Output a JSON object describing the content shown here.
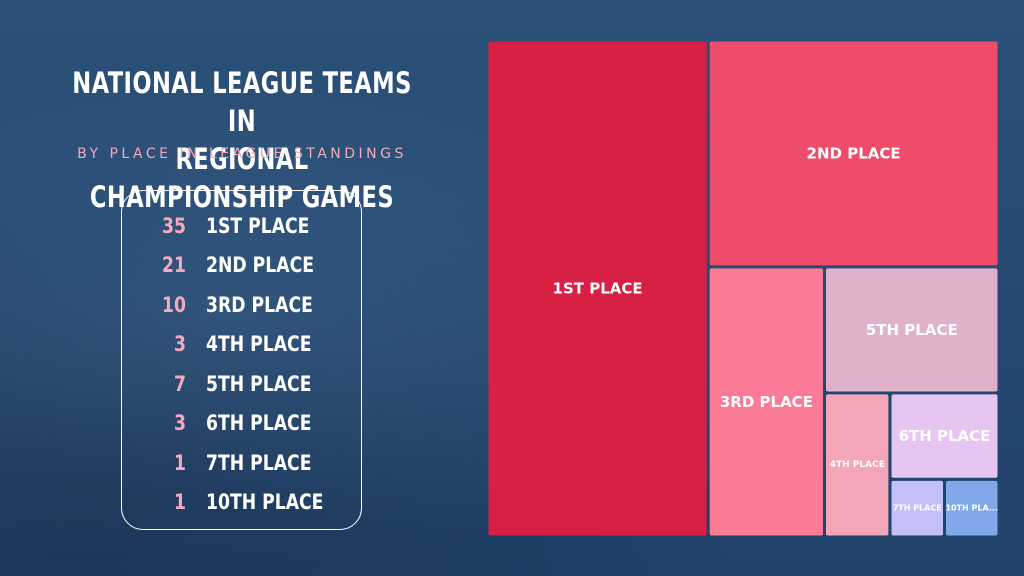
{
  "title_line1": "NATIONAL LEAGUE TEAMS IN",
  "title_line2": "REGIONAL CHAMPIONSHIP GAMES",
  "subtitle": "BY PLACE IN LEAGUE STANDINGS",
  "chart_data": {
    "type": "treemap",
    "title": "NATIONAL LEAGUE TEAMS IN REGIONAL CHAMPIONSHIP GAMES",
    "subtitle": "BY PLACE IN LEAGUE STANDINGS",
    "categories": [
      "1ST PLACE",
      "2ND PLACE",
      "3RD PLACE",
      "4TH PLACE",
      "5TH PLACE",
      "6TH PLACE",
      "7TH PLACE",
      "10TH PLACE"
    ],
    "values": [
      35,
      21,
      10,
      3,
      7,
      3,
      1,
      1
    ],
    "tile_labels": [
      "1ST PLACE",
      "2ND PLACE",
      "3RD PLACE",
      "4TH PLACE",
      "5TH PLACE",
      "6TH PLACE",
      "7TH PLACE",
      "10TH PLA..."
    ],
    "colors": [
      "#d81f44",
      "#ef4c6b",
      "#fb7b97",
      "#f4a6b8",
      "#e0b1cb",
      "#e6c6f0",
      "#c4bff7",
      "#7fa8ea"
    ]
  }
}
